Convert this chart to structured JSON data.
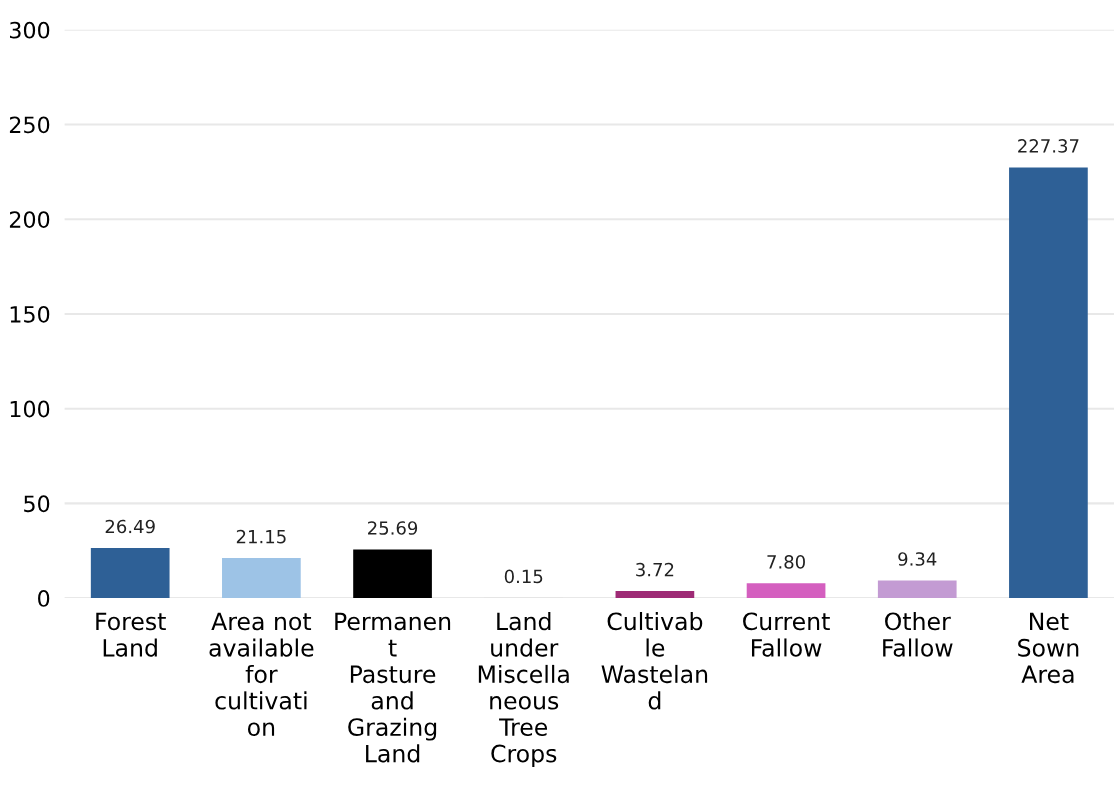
{
  "chart_data": {
    "type": "bar",
    "categories": [
      "Forest\nLand",
      "Area not\navailable\nfor\ncultivati\non",
      "Permanen\nt\nPasture\nand\nGrazing\nLand",
      "Land\nunder\nMiscella\nneous\nTree\nCrops",
      "Cultivab\nle\nWastelan\nd",
      "Current\nFallow",
      "Other\nFallow",
      "Net\nSown\nArea"
    ],
    "values": [
      26.49,
      21.15,
      25.69,
      0.15,
      3.72,
      7.8,
      9.34,
      227.37
    ],
    "value_labels": [
      "26.49",
      "21.15",
      "25.69",
      "0.15",
      "3.72",
      "7.80",
      "9.34",
      "227.37"
    ],
    "colors": [
      "#2e6096",
      "#9dc3e6",
      "#000000",
      "#d9d9d9",
      "#9e2a75",
      "#d45fbf",
      "#c39bd3",
      "#2e6096"
    ],
    "ylim": [
      0,
      300
    ],
    "yticks": [
      0,
      50,
      100,
      150,
      200,
      250,
      300
    ],
    "grid": "y",
    "legend": false
  }
}
